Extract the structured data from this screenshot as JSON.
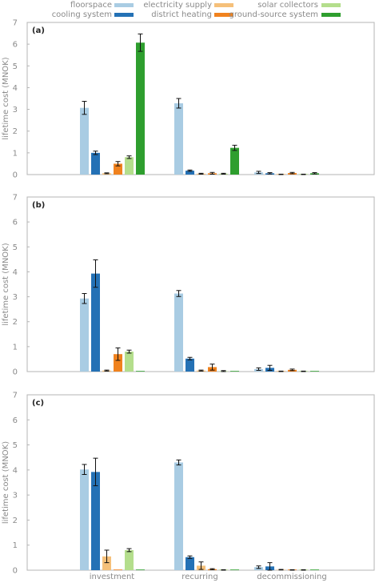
{
  "legend": [
    {
      "name": "floorspace",
      "color": "#a9cce3"
    },
    {
      "name": "cooling system",
      "color": "#2471b5"
    },
    {
      "name": "electricity supply",
      "color": "#f5c07a"
    },
    {
      "name": "district heating",
      "color": "#f0821e"
    },
    {
      "name": "solar collectors",
      "color": "#b4de8c"
    },
    {
      "name": "ground-source system",
      "color": "#2e9e2e"
    }
  ],
  "chart_data": [
    {
      "type": "bar",
      "panel_label": "(a)",
      "ylabel": "lifetime cost (MNOK)",
      "ylim": [
        0,
        7
      ],
      "yticks": [
        0,
        1,
        2,
        3,
        4,
        5,
        6,
        7
      ],
      "categories": [
        "investment",
        "recurring",
        "decommissioning"
      ],
      "series": [
        {
          "name": "floorspace",
          "values": [
            3.07,
            3.28,
            0.1
          ],
          "errors": [
            0.3,
            0.22,
            0.05
          ]
        },
        {
          "name": "cooling system",
          "values": [
            1.0,
            0.18,
            0.06
          ],
          "errors": [
            0.08,
            0.03,
            0.03
          ]
        },
        {
          "name": "electricity supply",
          "values": [
            0.06,
            0.04,
            0.01
          ],
          "errors": [
            0.02,
            0.02,
            0.01
          ]
        },
        {
          "name": "district heating",
          "values": [
            0.5,
            0.06,
            0.07
          ],
          "errors": [
            0.1,
            0.04,
            0.03
          ]
        },
        {
          "name": "solar collectors",
          "values": [
            0.8,
            0.04,
            0.01
          ],
          "errors": [
            0.06,
            0.02,
            0.01
          ]
        },
        {
          "name": "ground-source system",
          "values": [
            6.07,
            1.23,
            0.06
          ],
          "errors": [
            0.4,
            0.12,
            0.03
          ]
        }
      ]
    },
    {
      "type": "bar",
      "panel_label": "(b)",
      "ylabel": "lifetime cost (MNOK)",
      "ylim": [
        0,
        7
      ],
      "yticks": [
        0,
        1,
        2,
        3,
        4,
        5,
        6,
        7
      ],
      "categories": [
        "investment",
        "recurring",
        "decommissioning"
      ],
      "series": [
        {
          "name": "floorspace",
          "values": [
            2.93,
            3.13,
            0.1
          ],
          "errors": [
            0.2,
            0.12,
            0.05
          ]
        },
        {
          "name": "cooling system",
          "values": [
            3.93,
            0.52,
            0.15
          ],
          "errors": [
            0.55,
            0.05,
            0.1
          ]
        },
        {
          "name": "electricity supply",
          "values": [
            0.04,
            0.04,
            0.01
          ],
          "errors": [
            0.02,
            0.02,
            0.01
          ]
        },
        {
          "name": "district heating",
          "values": [
            0.7,
            0.18,
            0.07
          ],
          "errors": [
            0.25,
            0.12,
            0.03
          ]
        },
        {
          "name": "solar collectors",
          "values": [
            0.8,
            0.02,
            0.01
          ],
          "errors": [
            0.06,
            0.02,
            0.01
          ]
        },
        {
          "name": "ground-source system",
          "values": [
            0.0,
            0.0,
            0.0
          ],
          "errors": [
            0,
            0,
            0
          ]
        }
      ]
    },
    {
      "type": "bar",
      "panel_label": "(c)",
      "ylabel": "lifetime cost (MNOK)",
      "ylim": [
        0,
        7
      ],
      "yticks": [
        0,
        1,
        2,
        3,
        4,
        5,
        6,
        7
      ],
      "categories": [
        "investment",
        "recurring",
        "decommissioning"
      ],
      "series": [
        {
          "name": "floorspace",
          "values": [
            4.02,
            4.3,
            0.12
          ],
          "errors": [
            0.2,
            0.1,
            0.05
          ]
        },
        {
          "name": "cooling system",
          "values": [
            3.92,
            0.52,
            0.15
          ],
          "errors": [
            0.55,
            0.05,
            0.15
          ]
        },
        {
          "name": "electricity supply",
          "values": [
            0.55,
            0.18,
            0.02
          ],
          "errors": [
            0.25,
            0.15,
            0.01
          ]
        },
        {
          "name": "district heating",
          "values": [
            0.0,
            0.04,
            0.01
          ],
          "errors": [
            0,
            0.02,
            0.01
          ]
        },
        {
          "name": "solar collectors",
          "values": [
            0.8,
            0.01,
            0.01
          ],
          "errors": [
            0.06,
            0.01,
            0.01
          ]
        },
        {
          "name": "ground-source system",
          "values": [
            0.0,
            0.0,
            0.0
          ],
          "errors": [
            0,
            0,
            0
          ]
        }
      ]
    }
  ]
}
